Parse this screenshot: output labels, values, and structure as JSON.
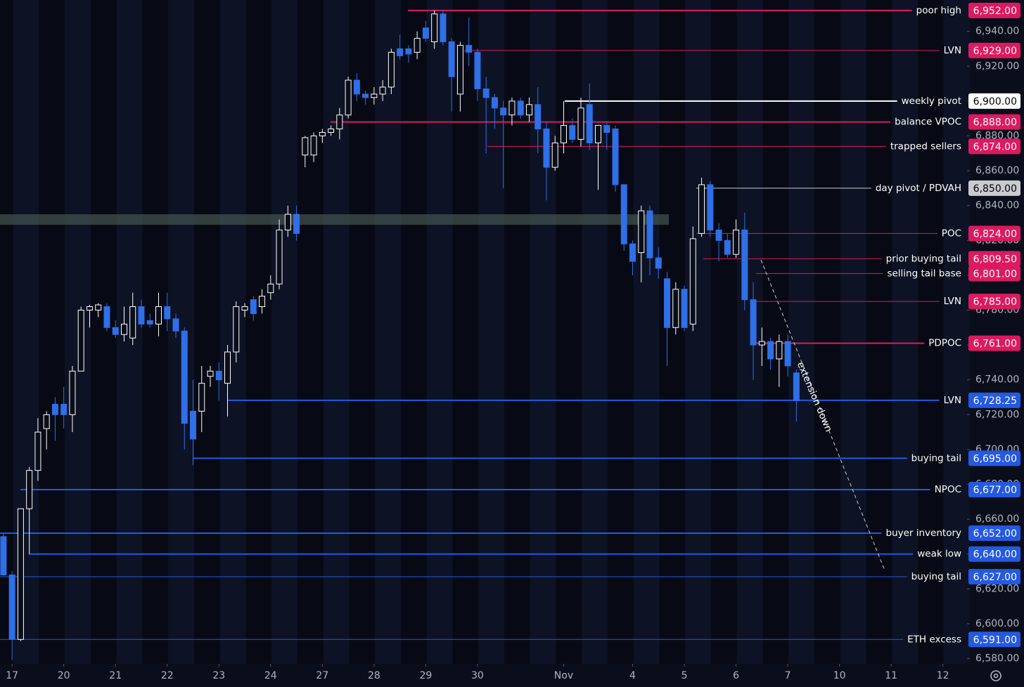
{
  "chart_data": {
    "type": "candlestick",
    "up_color": "#ffffff",
    "down_color": "#2f6fe8",
    "xlim": [
      -0.4,
      111.8
    ],
    "ylim": [
      6577,
      6958
    ],
    "xticks": [
      {
        "value": 1,
        "label": "17"
      },
      {
        "value": 7,
        "label": "20"
      },
      {
        "value": 13,
        "label": "21"
      },
      {
        "value": 19,
        "label": "22"
      },
      {
        "value": 25,
        "label": "23"
      },
      {
        "value": 31,
        "label": "24"
      },
      {
        "value": 37,
        "label": "27"
      },
      {
        "value": 43,
        "label": "28"
      },
      {
        "value": 49,
        "label": "29"
      },
      {
        "value": 55,
        "label": "30"
      },
      {
        "value": 65,
        "label": "Nov"
      },
      {
        "value": 73,
        "label": "4"
      },
      {
        "value": 79,
        "label": "5"
      },
      {
        "value": 85,
        "label": "6"
      },
      {
        "value": 91,
        "label": "7"
      },
      {
        "value": 97,
        "label": "10"
      },
      {
        "value": 103,
        "label": "11"
      },
      {
        "value": 109,
        "label": "12"
      }
    ],
    "yticks": [
      {
        "value": 6580,
        "label": "6,580.00"
      },
      {
        "value": 6600,
        "label": "6,600.00"
      },
      {
        "value": 6620,
        "label": "6,620.00"
      },
      {
        "value": 6640,
        "label": "6,640.00"
      },
      {
        "value": 6660,
        "label": "6,660.00"
      },
      {
        "value": 6680,
        "label": "6,680.00"
      },
      {
        "value": 6700,
        "label": "6,700.00"
      },
      {
        "value": 6720,
        "label": "6,720.00"
      },
      {
        "value": 6740,
        "label": "6,740.00"
      },
      {
        "value": 6760,
        "label": "6,760.00"
      },
      {
        "value": 6780,
        "label": "6,780.00"
      },
      {
        "value": 6800,
        "label": "6,800.00"
      },
      {
        "value": 6820,
        "label": "6,820.00"
      },
      {
        "value": 6840,
        "label": "6,840.00"
      },
      {
        "value": 6860,
        "label": "6,860.00"
      },
      {
        "value": 6880,
        "label": "6,880.00"
      },
      {
        "value": 6900,
        "label": "6,900.00"
      },
      {
        "value": 6920,
        "label": "6,920.00"
      },
      {
        "value": 6940,
        "label": "6,940.00"
      }
    ],
    "zone": [
      6829,
      6835
    ],
    "ohlc": [
      [
        6650,
        6652,
        6628,
        6628
      ],
      [
        6628,
        6630,
        6579,
        6591
      ],
      [
        6591,
        6666,
        6590,
        6666
      ],
      [
        6666,
        6690,
        6640,
        6688
      ],
      [
        6688,
        6718,
        6682,
        6710
      ],
      [
        6712,
        6722,
        6700,
        6720
      ],
      [
        6726,
        6730,
        6705,
        6720
      ],
      [
        6726,
        6736,
        6712,
        6720
      ],
      [
        6720,
        6748,
        6710,
        6745
      ],
      [
        6745,
        6782,
        6745,
        6780
      ],
      [
        6780,
        6783,
        6770,
        6782
      ],
      [
        6780,
        6784,
        6776,
        6783
      ],
      [
        6782,
        6784,
        6768,
        6770
      ],
      [
        6770,
        6774,
        6764,
        6766
      ],
      [
        6766,
        6782,
        6762,
        6772
      ],
      [
        6764,
        6790,
        6760,
        6782
      ],
      [
        6782,
        6786,
        6770,
        6772
      ],
      [
        6774,
        6778,
        6770,
        6772
      ],
      [
        6772,
        6790,
        6765,
        6782
      ],
      [
        6782,
        6790,
        6768,
        6775
      ],
      [
        6775,
        6778,
        6764,
        6768
      ],
      [
        6768,
        6770,
        6700,
        6715
      ],
      [
        6722,
        6740,
        6691,
        6706
      ],
      [
        6722,
        6748,
        6710,
        6738
      ],
      [
        6742,
        6748,
        6736,
        6745
      ],
      [
        6745,
        6750,
        6728,
        6740
      ],
      [
        6738,
        6760,
        6719,
        6756
      ],
      [
        6756,
        6785,
        6750,
        6782
      ],
      [
        6780,
        6784,
        6776,
        6782
      ],
      [
        6786,
        6788,
        6774,
        6778
      ],
      [
        6782,
        6792,
        6778,
        6788
      ],
      [
        6790,
        6800,
        6786,
        6795
      ],
      [
        6795,
        6832,
        6792,
        6826
      ],
      [
        6826,
        6840,
        6822,
        6835
      ],
      [
        6835,
        6840,
        6820,
        6824
      ],
      [
        6869,
        6880,
        6862,
        6879
      ],
      [
        6869,
        6882,
        6865,
        6880
      ],
      [
        6880,
        6884,
        6876,
        6882
      ],
      [
        6882,
        6886,
        6880,
        6884
      ],
      [
        6884,
        6896,
        6878,
        6892
      ],
      [
        6892,
        6914,
        6890,
        6912
      ],
      [
        6912,
        6916,
        6900,
        6904
      ],
      [
        6904,
        6906,
        6898,
        6902
      ],
      [
        6902,
        6908,
        6898,
        6904
      ],
      [
        6904,
        6912,
        6900,
        6908
      ],
      [
        6908,
        6930,
        6904,
        6928
      ],
      [
        6930,
        6938,
        6924,
        6926
      ],
      [
        6930,
        6932,
        6922,
        6927
      ],
      [
        6928,
        6940,
        6924,
        6936
      ],
      [
        6942,
        6946,
        6934,
        6936
      ],
      [
        6934,
        6952,
        6930,
        6950
      ],
      [
        6950,
        6952,
        6932,
        6934
      ],
      [
        6934,
        6936,
        6894,
        6914
      ],
      [
        6904,
        6934,
        6894,
        6932
      ],
      [
        6932,
        6948,
        6920,
        6928
      ],
      [
        6928,
        6930,
        6900,
        6907
      ],
      [
        6907,
        6914,
        6870,
        6902
      ],
      [
        6902,
        6904,
        6884,
        6896
      ],
      [
        6896,
        6900,
        6850,
        6892
      ],
      [
        6892,
        6902,
        6886,
        6900
      ],
      [
        6900,
        6902,
        6890,
        6892
      ],
      [
        6892,
        6902,
        6888,
        6898
      ],
      [
        6898,
        6908,
        6870,
        6884
      ],
      [
        6884,
        6888,
        6843,
        6862
      ],
      [
        6862,
        6880,
        6860,
        6876
      ],
      [
        6876,
        6900,
        6870,
        6886
      ],
      [
        6886,
        6890,
        6876,
        6878
      ],
      [
        6878,
        6902,
        6874,
        6896
      ],
      [
        6898,
        6910,
        6872,
        6876
      ],
      [
        6876,
        6886,
        6849,
        6886
      ],
      [
        6886,
        6888,
        6872,
        6882
      ],
      [
        6884,
        6886,
        6848,
        6852
      ],
      [
        6852,
        6852,
        6814,
        6818
      ],
      [
        6818,
        6820,
        6800,
        6808
      ],
      [
        6813,
        6840,
        6796,
        6837
      ],
      [
        6837,
        6840,
        6800,
        6810
      ],
      [
        6810,
        6816,
        6798,
        6804
      ],
      [
        6798,
        6802,
        6748,
        6770
      ],
      [
        6770,
        6796,
        6766,
        6792
      ],
      [
        6792,
        6794,
        6768,
        6770
      ],
      [
        6772,
        6828,
        6768,
        6821
      ],
      [
        6824,
        6856,
        6822,
        6852
      ],
      [
        6852,
        6854,
        6822,
        6826
      ],
      [
        6826,
        6830,
        6808,
        6820
      ],
      [
        6820,
        6824,
        6810,
        6812
      ],
      [
        6812,
        6832,
        6810,
        6826
      ],
      [
        6826,
        6836,
        6780,
        6786
      ],
      [
        6786,
        6796,
        6740,
        6760
      ],
      [
        6760,
        6770,
        6748,
        6762
      ],
      [
        6762,
        6764,
        6746,
        6752
      ],
      [
        6752,
        6766,
        6736,
        6762
      ],
      [
        6762,
        6766,
        6742,
        6748
      ],
      [
        6744,
        6746,
        6716,
        6728
      ]
    ],
    "levels": [
      {
        "label": "poor high",
        "value": 6952,
        "value_label": "6,952.00",
        "color": "#dc1a5f"
      },
      {
        "label": "LVN",
        "value": 6929,
        "value_label": "6,929.00",
        "color": "#dc1a5f"
      },
      {
        "label": "weekly pivot",
        "value": 6900,
        "value_label": "6,900.00",
        "color": "#ffffff"
      },
      {
        "label": "balance VPOC",
        "value": 6888,
        "value_label": "6,888.00",
        "color": "#dc1a5f"
      },
      {
        "label": "trapped sellers",
        "value": 6874,
        "value_label": "6,874.00",
        "color": "#dc1a5f"
      },
      {
        "label": "day pivot / PDVAH",
        "value": 6850,
        "value_label": "6,850.00",
        "color": "#c9cbd1"
      },
      {
        "label": "POC",
        "value": 6824,
        "value_label": "6,824.00",
        "color": "#dc1a5f"
      },
      {
        "label": "prior buying tail",
        "value": 6809.5,
        "value_label": "6,809.50",
        "color": "#dc1a5f"
      },
      {
        "label": "selling tail base",
        "value": 6801,
        "value_label": "6,801.00",
        "color": "#dc1a5f"
      },
      {
        "label": "LVN",
        "value": 6785,
        "value_label": "6,785.00",
        "color": "#dc1a5f"
      },
      {
        "label": "PDPOC",
        "value": 6761,
        "value_label": "6,761.00",
        "color": "#dc1a5f"
      },
      {
        "label": "LVN",
        "value": 6728.25,
        "value_label": "6,728.25",
        "color": "#2459e0"
      },
      {
        "label": "buying tail",
        "value": 6695,
        "value_label": "6,695.00",
        "color": "#2459e0"
      },
      {
        "label": "NPOC",
        "value": 6677,
        "value_label": "6,677.00",
        "color": "#2459e0"
      },
      {
        "label": "buyer inventory",
        "value": 6652,
        "value_label": "6,652.00",
        "color": "#2459e0"
      },
      {
        "label": "weak low",
        "value": 6640,
        "value_label": "6,640.00",
        "color": "#2459e0"
      },
      {
        "label": "buying tail",
        "value": 6627,
        "value_label": "6,627.00",
        "color": "#2459e0"
      },
      {
        "label": "ETH excess",
        "value": 6591,
        "value_label": "6,591.00",
        "color": "#2459e0"
      }
    ],
    "annotations": [
      "extension down"
    ]
  }
}
